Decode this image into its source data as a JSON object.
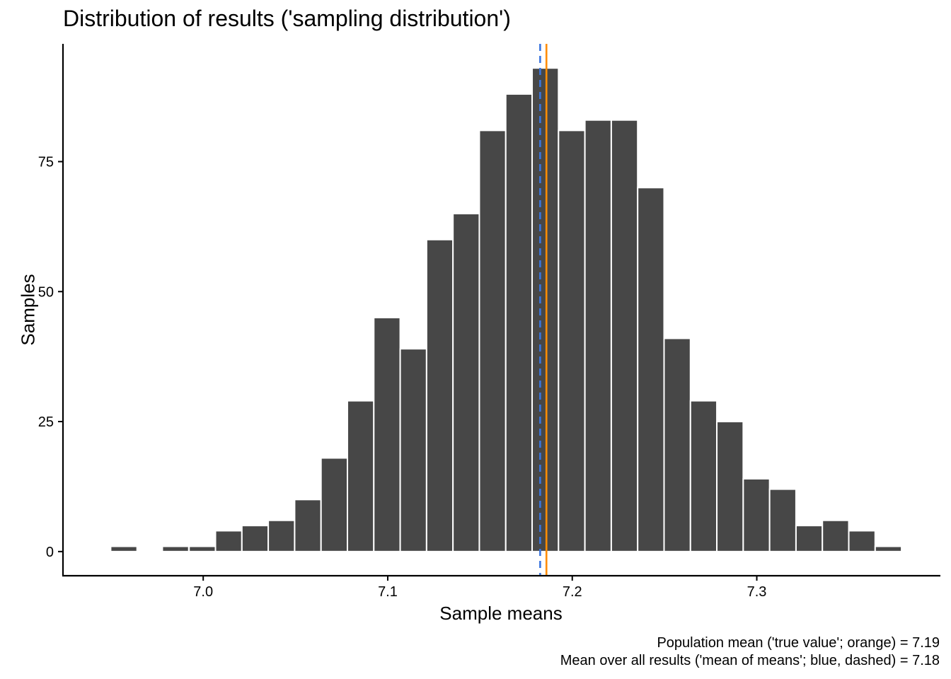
{
  "chart_data": {
    "type": "bar",
    "subtype": "histogram",
    "title": "Distribution of results ('sampling distribution')",
    "xlabel": "Sample means",
    "ylabel": "Samples",
    "xlim": [
      6.924,
      7.3995
    ],
    "ylim": [
      -4.65,
      97.65
    ],
    "bin_width": 0.0143,
    "bins": [
      {
        "x": 6.957,
        "count": 1
      },
      {
        "x": 6.971,
        "count": 0
      },
      {
        "x": 6.985,
        "count": 1
      },
      {
        "x": 6.9995,
        "count": 1
      },
      {
        "x": 7.0138,
        "count": 4
      },
      {
        "x": 7.0281,
        "count": 5
      },
      {
        "x": 7.0424,
        "count": 6
      },
      {
        "x": 7.0567,
        "count": 10
      },
      {
        "x": 7.071,
        "count": 18
      },
      {
        "x": 7.0853,
        "count": 29
      },
      {
        "x": 7.0996,
        "count": 45
      },
      {
        "x": 7.1139,
        "count": 39
      },
      {
        "x": 7.1282,
        "count": 60
      },
      {
        "x": 7.1425,
        "count": 65
      },
      {
        "x": 7.1568,
        "count": 81
      },
      {
        "x": 7.1711,
        "count": 88
      },
      {
        "x": 7.1854,
        "count": 93
      },
      {
        "x": 7.1997,
        "count": 81
      },
      {
        "x": 7.214,
        "count": 83
      },
      {
        "x": 7.2283,
        "count": 83
      },
      {
        "x": 7.2426,
        "count": 70
      },
      {
        "x": 7.2569,
        "count": 41
      },
      {
        "x": 7.2712,
        "count": 29
      },
      {
        "x": 7.2855,
        "count": 25
      },
      {
        "x": 7.2998,
        "count": 14
      },
      {
        "x": 7.3141,
        "count": 12
      },
      {
        "x": 7.3284,
        "count": 5
      },
      {
        "x": 7.3427,
        "count": 6
      },
      {
        "x": 7.357,
        "count": 4
      },
      {
        "x": 7.3713,
        "count": 1
      }
    ],
    "x_ticks": [
      {
        "value": 7.0,
        "label": "7.0"
      },
      {
        "value": 7.1,
        "label": "7.1"
      },
      {
        "value": 7.2,
        "label": "7.2"
      },
      {
        "value": 7.3,
        "label": "7.3"
      }
    ],
    "y_ticks": [
      {
        "value": 0,
        "label": "0"
      },
      {
        "value": 25,
        "label": "25"
      },
      {
        "value": 50,
        "label": "50"
      },
      {
        "value": 75,
        "label": "75"
      }
    ],
    "reference_lines": [
      {
        "name": "population-mean",
        "value": 7.186,
        "color": "#FF8C00",
        "style": "solid"
      },
      {
        "name": "mean-of-means",
        "value": 7.1826,
        "color": "#3A75DE",
        "style": "dashed"
      }
    ],
    "bar_color": "#474747",
    "caption": [
      "Population mean ('true value'; orange) = 7.19",
      "Mean over all results ('mean of means'; blue, dashed) = 7.18"
    ],
    "grid": false
  }
}
